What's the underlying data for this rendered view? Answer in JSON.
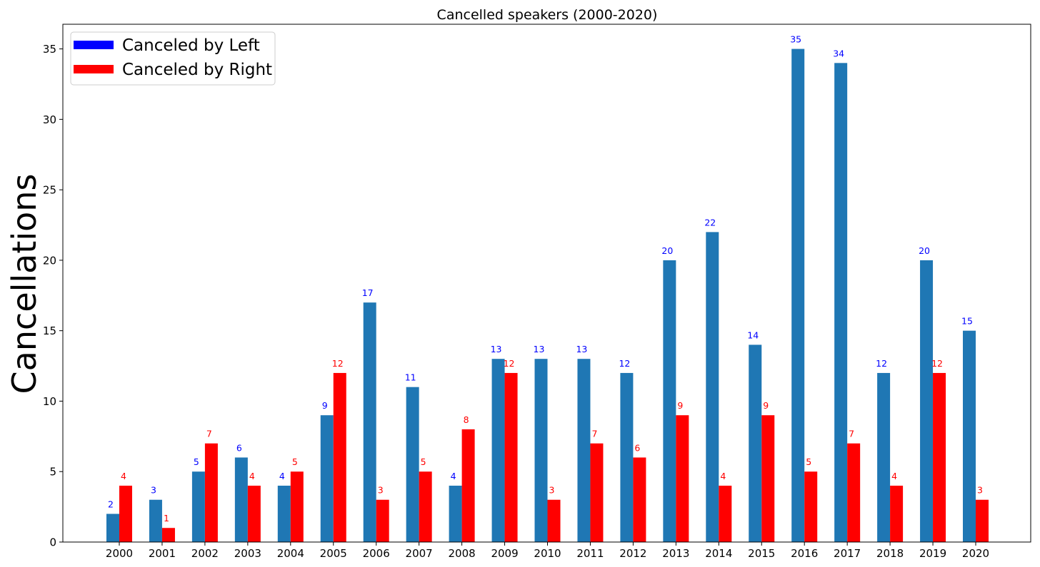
{
  "chart_data": {
    "type": "bar",
    "title": "Cancelled speakers (2000-2020)",
    "xlabel": "",
    "ylabel": "Cancellations",
    "ylim": [
      0,
      36.75
    ],
    "yticks": [
      0,
      5,
      10,
      15,
      20,
      25,
      30,
      35
    ],
    "grid": false,
    "legend_position": "top-left",
    "categories": [
      "2000",
      "2001",
      "2002",
      "2003",
      "2004",
      "2005",
      "2006",
      "2007",
      "2008",
      "2009",
      "2010",
      "2011",
      "2012",
      "2013",
      "2014",
      "2015",
      "2016",
      "2017",
      "2018",
      "2019",
      "2020"
    ],
    "series": [
      {
        "name": "Canceled by Left",
        "bar_color": "#1f77b4",
        "legend_color": "#0000ff",
        "label_color": "#0000ff",
        "values": [
          2,
          3,
          5,
          6,
          4,
          9,
          17,
          11,
          4,
          13,
          13,
          13,
          12,
          20,
          22,
          14,
          35,
          34,
          12,
          20,
          15
        ]
      },
      {
        "name": "Canceled by Right",
        "bar_color": "#ff0000",
        "legend_color": "#ff0000",
        "label_color": "#ff0000",
        "values": [
          4,
          1,
          7,
          4,
          5,
          12,
          3,
          5,
          8,
          12,
          3,
          7,
          6,
          9,
          4,
          9,
          5,
          7,
          4,
          12,
          3
        ]
      }
    ]
  }
}
